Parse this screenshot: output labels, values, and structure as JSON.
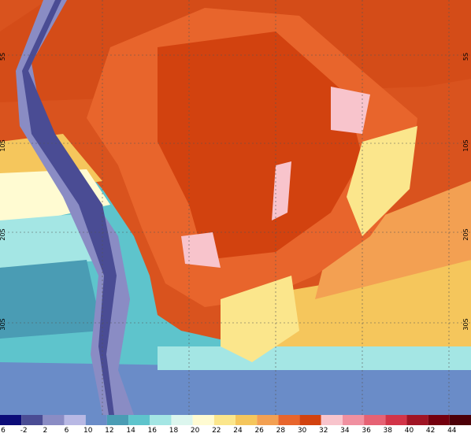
{
  "map": {
    "lat_labels_left": [
      "5S",
      "10S",
      "20S",
      "30S"
    ],
    "lat_labels_right": [
      "5S",
      "10S",
      "20S",
      "30S"
    ],
    "legend": {
      "labels": [
        6,
        -2,
        2,
        6,
        10,
        12,
        14,
        16,
        18,
        20,
        22,
        24,
        26,
        28,
        30,
        32,
        34,
        36,
        38,
        40,
        42,
        44
      ],
      "colors": [
        "#0c0c78",
        "#4a4c94",
        "#8a8cc4",
        "#b8b8e4",
        "#6a8cc8",
        "#4a9cb4",
        "#5ec4cc",
        "#a4e6e4",
        "#dcf6ee",
        "#fffbd2",
        "#fbe68c",
        "#f5c65c",
        "#f3a052",
        "#e8652c",
        "#d2420f",
        "#f8c4cc",
        "#f090a0",
        "#e66274",
        "#d23448",
        "#a01424",
        "#74000e",
        "#4c0008"
      ]
    }
  }
}
